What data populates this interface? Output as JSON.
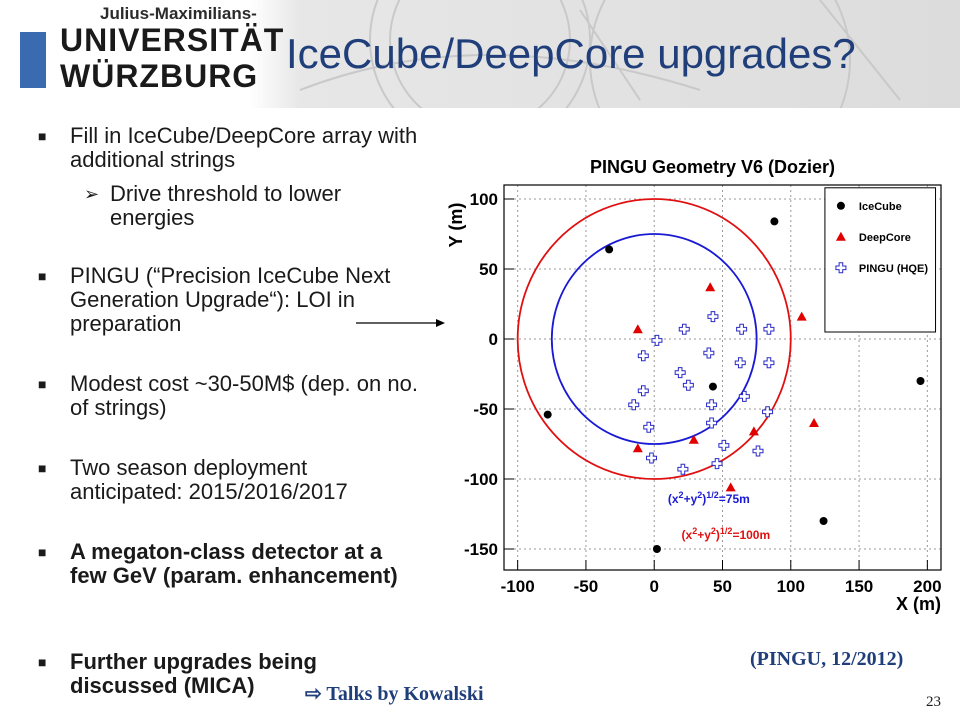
{
  "header": {
    "logo_top": "Julius-Maximilians-",
    "logo_line1": "UNIVERSITÄT",
    "logo_line2": "WÜRZBURG"
  },
  "slide": {
    "title": "IceCube/DeepCore upgrades?",
    "bullets": [
      {
        "text": "Fill in IceCube/DeepCore array with additional strings",
        "bold": false
      },
      {
        "text": "PINGU (“Precision IceCube Next Generation Upgrade“): LOI in preparation",
        "bold": false
      },
      {
        "text": "Modest cost ~30-50M$ (dep. on no. of strings)",
        "bold": false
      },
      {
        "text": "Two season deployment anticipated: 2015/2016/2017",
        "bold": false
      },
      {
        "text": "A megaton-class detector at a few GeV (param. enhancement)",
        "bold": true
      },
      {
        "text": "Further upgrades being discussed (MICA)",
        "bold": true
      }
    ],
    "sub_bullet": "Drive threshold to lower energies",
    "caption": "(PINGU, 12/2012)",
    "talks": "⇨ Talks by Kowalski",
    "page_number": "23"
  },
  "chart_data": {
    "type": "scatter",
    "title": "PINGU Geometry V6 (Dozier)",
    "xlabel": "X (m)",
    "ylabel": "Y (m)",
    "xlim": [
      -110,
      210
    ],
    "ylim": [
      -165,
      110
    ],
    "xticks": [
      -100,
      -50,
      0,
      50,
      100,
      150,
      200
    ],
    "yticks": [
      -150,
      -100,
      -50,
      0,
      50,
      100
    ],
    "grid": true,
    "legend_position": "top-right",
    "series": [
      {
        "name": "IceCube",
        "marker": "circle",
        "color": "#000000",
        "points": [
          [
            -33,
            64
          ],
          [
            88,
            84
          ],
          [
            -78,
            -54
          ],
          [
            43,
            -34
          ],
          [
            195,
            -30
          ],
          [
            124,
            -130
          ],
          [
            2,
            -150
          ]
        ]
      },
      {
        "name": "DeepCore",
        "marker": "triangle",
        "color": "#e00000",
        "points": [
          [
            41,
            37
          ],
          [
            -12,
            7
          ],
          [
            108,
            16
          ],
          [
            -12,
            -78
          ],
          [
            117,
            -60
          ],
          [
            29,
            -72
          ],
          [
            73,
            -66
          ],
          [
            56,
            -106
          ]
        ]
      },
      {
        "name": "PINGU (HQE)",
        "marker": "plus",
        "color": "#2a2ac8",
        "points": [
          [
            43,
            16
          ],
          [
            22,
            7
          ],
          [
            64,
            7
          ],
          [
            84,
            7
          ],
          [
            2,
            -1
          ],
          [
            40,
            -10
          ],
          [
            -8,
            -12
          ],
          [
            19,
            -24
          ],
          [
            63,
            -17
          ],
          [
            84,
            -17
          ],
          [
            -8,
            -37
          ],
          [
            25,
            -33
          ],
          [
            66,
            -41
          ],
          [
            -15,
            -47
          ],
          [
            42,
            -47
          ],
          [
            42,
            -60
          ],
          [
            83,
            -52
          ],
          [
            -4,
            -63
          ],
          [
            51,
            -76
          ],
          [
            76,
            -80
          ],
          [
            -2,
            -85
          ],
          [
            21,
            -93
          ],
          [
            46,
            -89
          ]
        ]
      }
    ],
    "circles": [
      {
        "label": "(x²+y²)^½=75m",
        "radius": 75,
        "color": "#1a1ad4"
      },
      {
        "label": "(x²+y²)^½=100m",
        "radius": 100,
        "color": "#e01010"
      }
    ],
    "circle_label_75_base": "(x",
    "circle_label_75_sup1": "2",
    "circle_label_75_mid": "+y",
    "circle_label_75_sup2": "2",
    "circle_label_75_close": ")",
    "circle_label_75_sup3": "1/2",
    "circle_label_75_end": "=75m",
    "circle_label_100_end": "=100m"
  }
}
